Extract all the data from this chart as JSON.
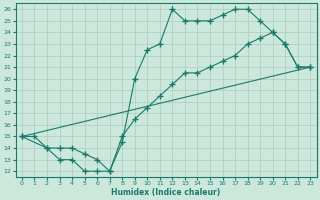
{
  "xlabel": "Humidex (Indice chaleur)",
  "bg_color": "#cce8dd",
  "line_color": "#1a7a6a",
  "grid_color": "#aaccbb",
  "xlim": [
    -0.5,
    23.5
  ],
  "ylim": [
    11.5,
    26.5
  ],
  "xticks": [
    0,
    1,
    2,
    3,
    4,
    5,
    6,
    7,
    8,
    9,
    10,
    11,
    12,
    13,
    14,
    15,
    16,
    17,
    18,
    19,
    20,
    21,
    22,
    23
  ],
  "yticks": [
    12,
    13,
    14,
    15,
    16,
    17,
    18,
    19,
    20,
    21,
    22,
    23,
    24,
    25,
    26
  ],
  "line1_x": [
    0,
    1,
    2,
    3,
    4,
    5,
    6,
    7,
    8,
    9,
    10,
    11,
    12,
    13,
    14,
    15,
    16,
    17,
    18,
    19,
    20,
    21,
    22,
    23
  ],
  "line1_y": [
    15,
    15,
    14,
    13,
    13,
    12,
    12,
    12,
    14.5,
    20,
    22.5,
    23,
    26,
    25,
    25,
    25,
    25.5,
    26,
    26,
    25,
    24,
    23,
    21,
    21
  ],
  "line2_x": [
    0,
    2,
    3,
    4,
    5,
    6,
    7,
    8,
    9,
    10,
    11,
    12,
    13,
    14,
    15,
    16,
    17,
    18,
    19,
    20,
    21,
    22,
    23
  ],
  "line2_y": [
    15,
    14,
    14,
    14,
    13.5,
    13,
    12,
    15,
    16.5,
    17.5,
    18.5,
    19.5,
    20.5,
    20.5,
    21,
    21.5,
    22,
    23,
    23.5,
    24,
    23,
    21,
    21
  ],
  "line3_x": [
    0,
    23
  ],
  "line3_y": [
    15,
    21
  ],
  "marker": "+",
  "markersize": 4,
  "linewidth": 0.8
}
